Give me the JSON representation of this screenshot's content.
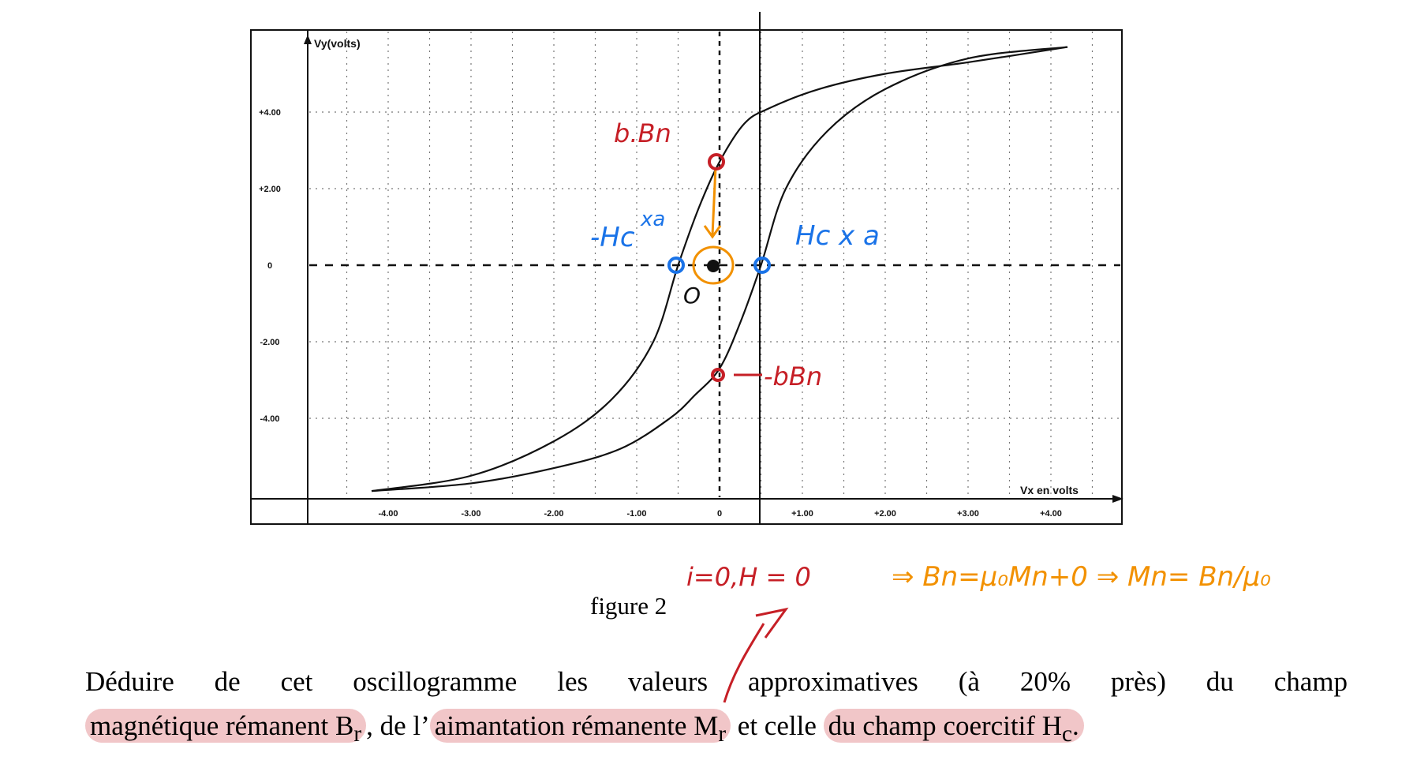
{
  "figure": {
    "caption": "figure 2",
    "y_axis_label": "Vy(volts)",
    "x_axis_label": "Vx en volts"
  },
  "chart_data": {
    "type": "line",
    "title": "",
    "xlabel": "Vx en volts",
    "ylabel": "Vy(volts)",
    "xlim": [
      -4.8,
      5.1
    ],
    "ylim": [
      -6.0,
      5.8
    ],
    "x_ticks": [
      "-4.00",
      "-3.00",
      "-2.00",
      "-1.00",
      "0",
      "+1.00",
      "+2.00",
      "+3.00",
      "+4.00"
    ],
    "y_ticks": [
      "+4.00",
      "+2.00",
      "0",
      "-2.00",
      "-4.00"
    ],
    "grid": true,
    "series": [
      {
        "x": [
          -4.2,
          -3.0,
          -2.0,
          -1.3,
          -0.8,
          -0.5,
          -0.25,
          0.0,
          0.3,
          0.6,
          1.2,
          2.0,
          3.0,
          4.2
        ],
        "y": [
          -5.9,
          -5.5,
          -4.6,
          -3.5,
          -2.0,
          0.0,
          1.5,
          2.7,
          3.7,
          4.1,
          4.6,
          5.0,
          5.3,
          5.7
        ]
      },
      {
        "x": [
          -4.2,
          -3.0,
          -2.0,
          -1.2,
          -0.6,
          -0.3,
          0.0,
          0.25,
          0.5,
          0.8,
          1.3,
          2.0,
          3.0,
          4.2
        ],
        "y": [
          -5.9,
          -5.7,
          -5.3,
          -4.8,
          -4.0,
          -3.4,
          -2.7,
          -1.5,
          0.0,
          2.0,
          3.5,
          4.6,
          5.4,
          5.7
        ]
      }
    ]
  },
  "annotations": {
    "br_top": "b.Bn",
    "br_bottom": "-bBn",
    "hc_neg": "-Hc",
    "hc_neg_sup": "xa",
    "hc_pos": "Hc x a",
    "origin": "O",
    "eq_red": "i=0,H = 0",
    "eq_orange": "⇒ Bn=μ₀Mn+0 ⇒ Mn= Bn/μ₀"
  },
  "text": {
    "line1": "Déduire de cet oscillogramme les valeurs approximatives (à 20% près) du champ",
    "seg1": "magnétique rémanent B",
    "seg1_sub": "r",
    "seg2": ", de l’",
    "seg3": "aimantation rémanente M",
    "seg3_sub": "r",
    "seg4": " et celle ",
    "seg5": "du champ coercitif H",
    "seg5_sub": "c",
    "seg6": "."
  },
  "colors": {
    "red": "#c61f26",
    "blue": "#1a73e8",
    "orange": "#f29100",
    "highlight": "#de787d"
  }
}
